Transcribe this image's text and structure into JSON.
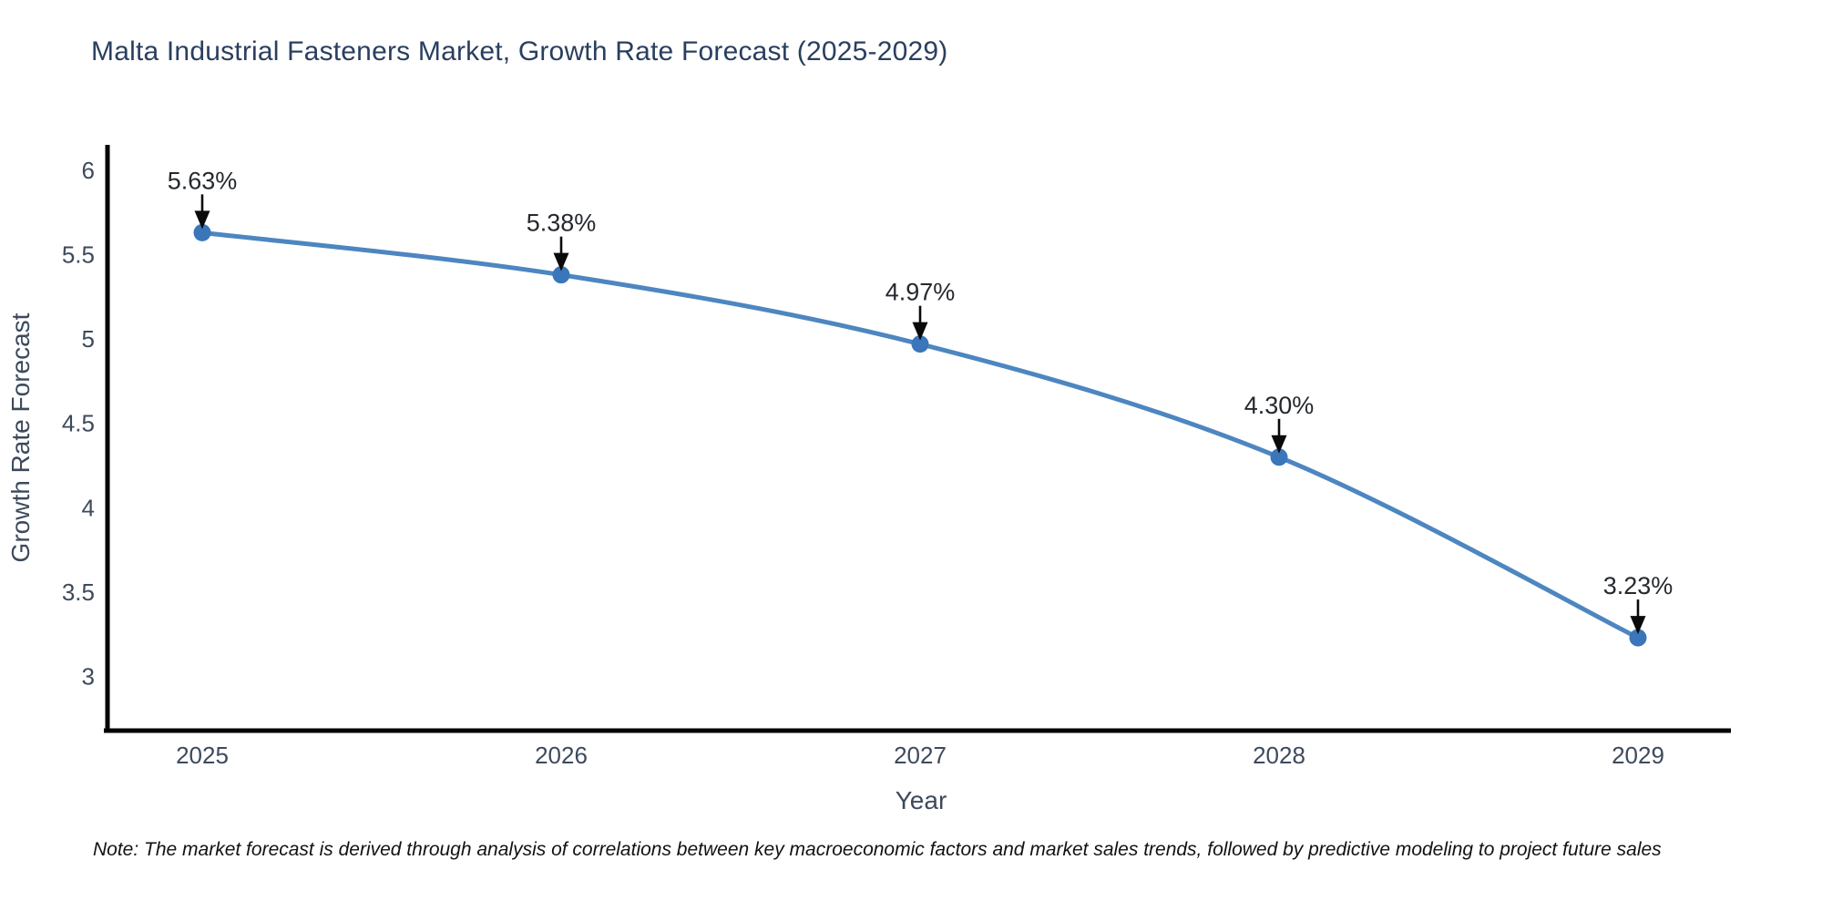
{
  "title": "Malta Industrial Fasteners Market, Growth Rate Forecast (2025-2029)",
  "note": "Note: The market forecast is derived through analysis of correlations between key macroeconomic factors and market sales trends, followed by predictive modeling to project future sales",
  "chart_data": {
    "type": "line",
    "title": "Malta Industrial Fasteners Market, Growth Rate Forecast (2025-2029)",
    "x": [
      2025,
      2026,
      2027,
      2028,
      2029
    ],
    "xtick_labels": [
      "2025",
      "2026",
      "2027",
      "2028",
      "2029"
    ],
    "series": [
      {
        "name": "Growth Rate Forecast",
        "values": [
          5.63,
          5.38,
          4.97,
          4.3,
          3.23
        ]
      }
    ],
    "point_labels": [
      "5.63%",
      "5.38%",
      "4.97%",
      "4.30%",
      "3.23%"
    ],
    "xlabel": "Year",
    "ylabel": "Growth Rate Forecast",
    "ylim": [
      2.68,
      6.15
    ],
    "yticks": [
      6,
      5.5,
      5,
      4.5,
      4,
      3.5,
      3
    ],
    "ytick_labels": [
      "6",
      "5.5",
      "5",
      "4.5",
      "4",
      "3.5",
      "3"
    ],
    "grid": false,
    "legend_position": "none",
    "marker_style": "circle",
    "annotation_arrows": "down",
    "colors": {
      "line": "#4d86c0",
      "marker": "#3a76b9",
      "axis": "#020202",
      "title": "#2a3f5f",
      "tick": "#3d4a5c",
      "axis_title": "#3d4a5c",
      "annotation": "#25292e",
      "arrow": "#0a0a0a",
      "note": "#121212",
      "background": "#ffffff"
    }
  }
}
